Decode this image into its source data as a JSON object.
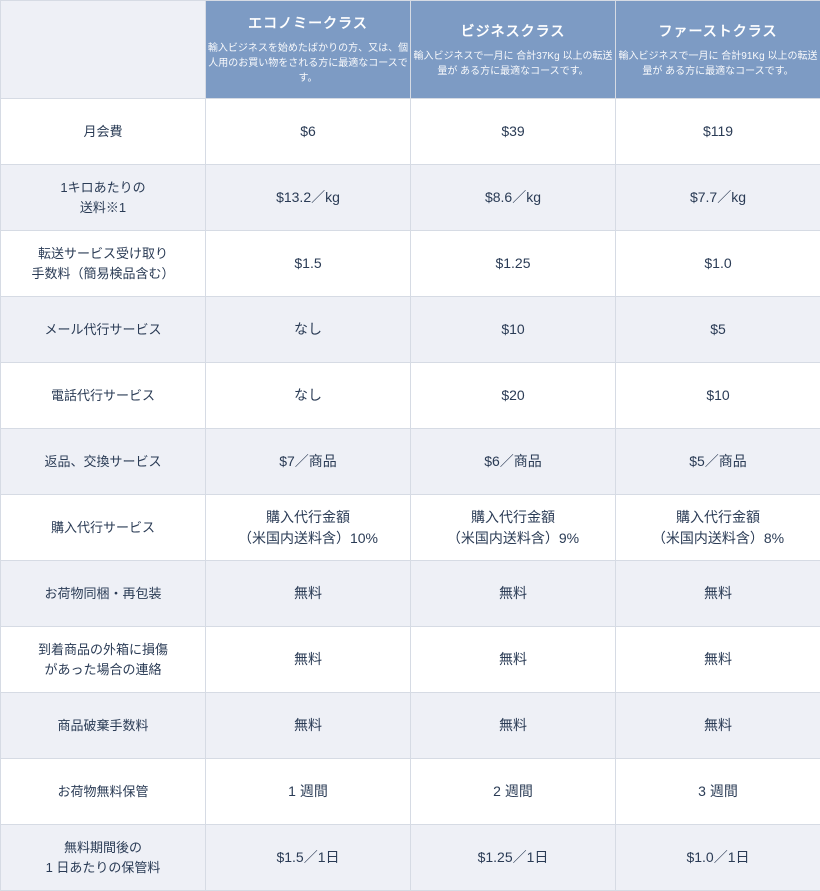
{
  "colors": {
    "header_bg": "#7d9bc4",
    "header_text": "#ffffff",
    "alt_row_bg": "#eef0f6",
    "border": "#d6dbe4",
    "text": "#2a3b55"
  },
  "plans": [
    {
      "title": "エコノミークラス",
      "desc": "輸入ビジネスを始めたばかりの方、又は、個人用のお買い物をされる方に最適なコースです。"
    },
    {
      "title": "ビジネスクラス",
      "desc": "輸入ビジネスで一月に\n合計37Kg 以上の転送量が\nある方に最適なコースです。"
    },
    {
      "title": "ファーストクラス",
      "desc": "輸入ビジネスで一月に\n合計91Kg 以上の転送量が\nある方に最適なコースです。"
    }
  ],
  "rows": [
    {
      "label": "月会費",
      "cells": [
        "$6",
        "$39",
        "$119"
      ]
    },
    {
      "label": "1キロあたりの\n送料※1",
      "cells": [
        "$13.2／kg",
        "$8.6／kg",
        "$7.7／kg"
      ]
    },
    {
      "label": "転送サービス受け取り\n手数料（簡易検品含む）",
      "cells": [
        "$1.5",
        "$1.25",
        "$1.0"
      ]
    },
    {
      "label": "メール代行サービス",
      "cells": [
        "なし",
        "$10",
        "$5"
      ]
    },
    {
      "label": "電話代行サービス",
      "cells": [
        "なし",
        "$20",
        "$10"
      ]
    },
    {
      "label": "返品、交換サービス",
      "cells": [
        "$7／商品",
        "$6／商品",
        "$5／商品"
      ]
    },
    {
      "label": "購入代行サービス",
      "cells": [
        "購入代行金額\n（米国内送料含）10%",
        "購入代行金額\n（米国内送料含）9%",
        "購入代行金額\n（米国内送料含）8%"
      ]
    },
    {
      "label": "お荷物同梱・再包装",
      "cells": [
        "無料",
        "無料",
        "無料"
      ]
    },
    {
      "label": "到着商品の外箱に損傷\nがあった場合の連絡",
      "cells": [
        "無料",
        "無料",
        "無料"
      ]
    },
    {
      "label": "商品破棄手数料",
      "cells": [
        "無料",
        "無料",
        "無料"
      ]
    },
    {
      "label": "お荷物無料保管",
      "cells": [
        "1 週間",
        "2 週間",
        "3 週間"
      ]
    },
    {
      "label": "無料期間後の\n1 日あたりの保管料",
      "cells": [
        "$1.5／1日",
        "$1.25／1日",
        "$1.0／1日"
      ]
    }
  ]
}
